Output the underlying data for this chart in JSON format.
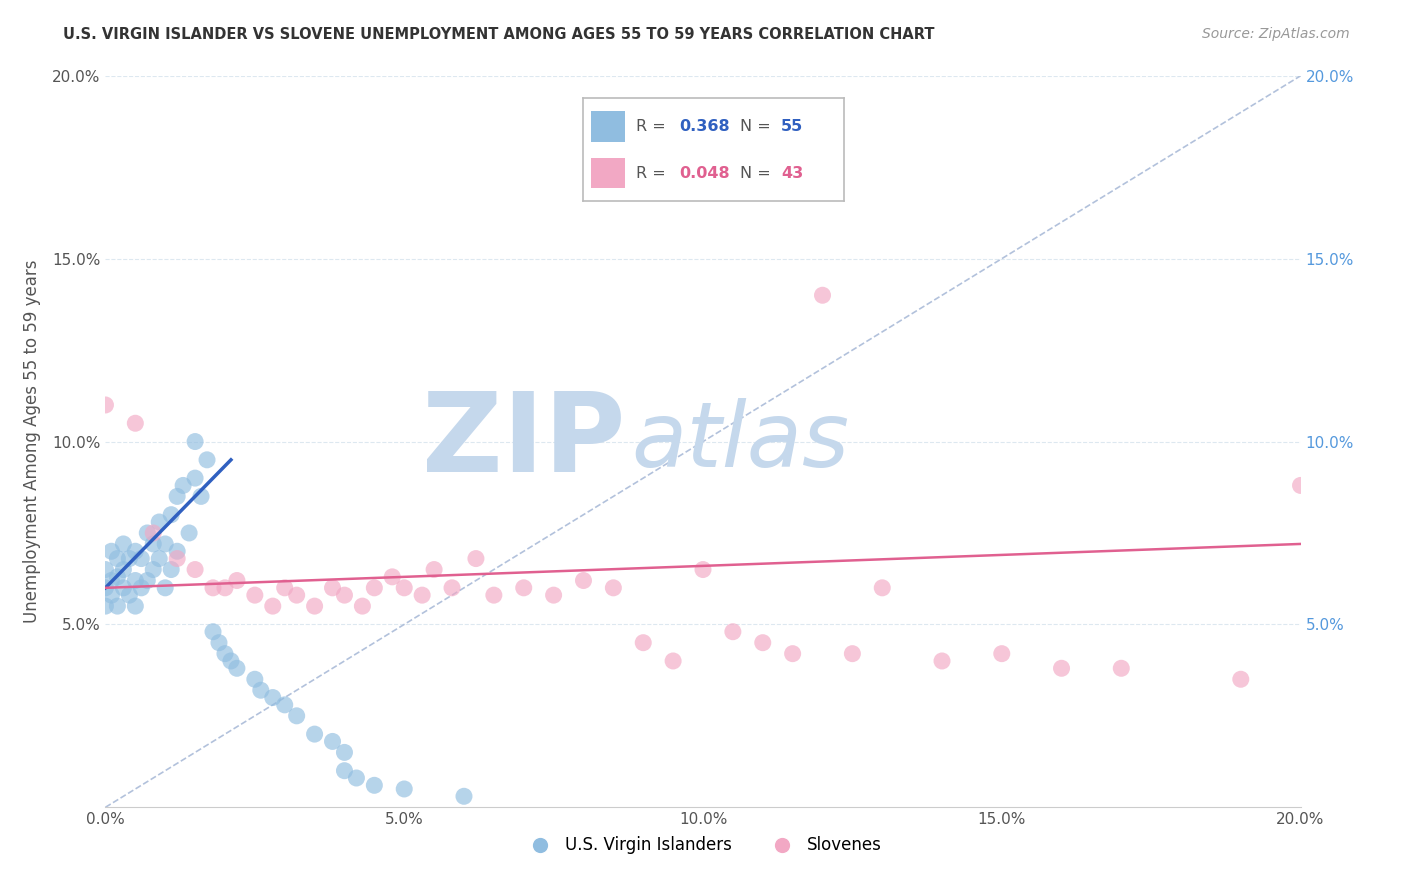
{
  "title": "U.S. VIRGIN ISLANDER VS SLOVENE UNEMPLOYMENT AMONG AGES 55 TO 59 YEARS CORRELATION CHART",
  "source": "Source: ZipAtlas.com",
  "ylabel": "Unemployment Among Ages 55 to 59 years",
  "xlim": [
    0.0,
    0.2
  ],
  "ylim": [
    0.0,
    0.2
  ],
  "legend_r_blue": "0.368",
  "legend_n_blue": "55",
  "legend_r_pink": "0.048",
  "legend_n_pink": "43",
  "blue_color": "#90bde0",
  "pink_color": "#f2a8c4",
  "blue_line_color": "#3060c0",
  "pink_line_color": "#e06090",
  "ref_line_color": "#aabbd8",
  "watermark_zip": "ZIP",
  "watermark_atlas": "atlas",
  "watermark_color": "#c5d8ec",
  "background_color": "#ffffff",
  "grid_color": "#dde8f0",
  "blue_x": [
    0.0,
    0.0,
    0.0,
    0.001,
    0.001,
    0.001,
    0.002,
    0.002,
    0.002,
    0.003,
    0.003,
    0.003,
    0.004,
    0.004,
    0.005,
    0.005,
    0.005,
    0.006,
    0.006,
    0.007,
    0.007,
    0.008,
    0.008,
    0.009,
    0.009,
    0.01,
    0.01,
    0.011,
    0.011,
    0.012,
    0.012,
    0.013,
    0.014,
    0.015,
    0.015,
    0.016,
    0.017,
    0.018,
    0.019,
    0.02,
    0.021,
    0.022,
    0.025,
    0.026,
    0.028,
    0.03,
    0.032,
    0.035,
    0.038,
    0.04,
    0.04,
    0.042,
    0.045,
    0.05,
    0.06
  ],
  "blue_y": [
    0.055,
    0.06,
    0.065,
    0.058,
    0.062,
    0.07,
    0.055,
    0.063,
    0.068,
    0.06,
    0.065,
    0.072,
    0.058,
    0.068,
    0.055,
    0.062,
    0.07,
    0.06,
    0.068,
    0.062,
    0.075,
    0.065,
    0.072,
    0.068,
    0.078,
    0.06,
    0.072,
    0.065,
    0.08,
    0.07,
    0.085,
    0.088,
    0.075,
    0.09,
    0.1,
    0.085,
    0.095,
    0.048,
    0.045,
    0.042,
    0.04,
    0.038,
    0.035,
    0.032,
    0.03,
    0.028,
    0.025,
    0.02,
    0.018,
    0.015,
    0.01,
    0.008,
    0.006,
    0.005,
    0.003
  ],
  "pink_x": [
    0.0,
    0.005,
    0.008,
    0.012,
    0.015,
    0.018,
    0.02,
    0.022,
    0.025,
    0.028,
    0.03,
    0.032,
    0.035,
    0.038,
    0.04,
    0.043,
    0.045,
    0.048,
    0.05,
    0.053,
    0.055,
    0.058,
    0.062,
    0.065,
    0.07,
    0.075,
    0.08,
    0.085,
    0.09,
    0.095,
    0.1,
    0.105,
    0.11,
    0.115,
    0.12,
    0.125,
    0.13,
    0.14,
    0.15,
    0.16,
    0.17,
    0.19,
    0.2
  ],
  "pink_y": [
    0.11,
    0.105,
    0.075,
    0.068,
    0.065,
    0.06,
    0.06,
    0.062,
    0.058,
    0.055,
    0.06,
    0.058,
    0.055,
    0.06,
    0.058,
    0.055,
    0.06,
    0.063,
    0.06,
    0.058,
    0.065,
    0.06,
    0.068,
    0.058,
    0.06,
    0.058,
    0.062,
    0.06,
    0.045,
    0.04,
    0.065,
    0.048,
    0.045,
    0.042,
    0.14,
    0.042,
    0.06,
    0.04,
    0.042,
    0.038,
    0.038,
    0.035,
    0.088
  ],
  "blue_trend_x": [
    0.0,
    0.021
  ],
  "blue_trend_y_start": 0.06,
  "blue_trend_y_end": 0.095,
  "pink_trend_x": [
    0.0,
    0.2
  ],
  "pink_trend_y_start": 0.06,
  "pink_trend_y_end": 0.072
}
